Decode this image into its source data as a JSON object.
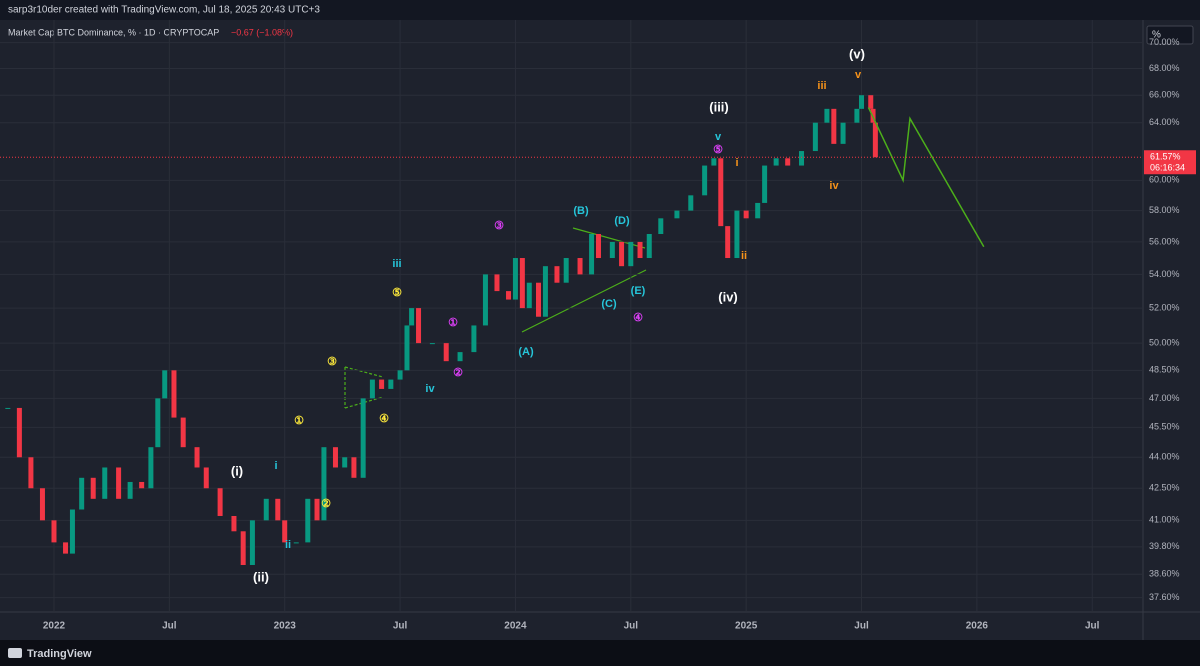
{
  "header": "sarp3r10der created with TradingView.com, Jul 18, 2025 20:43 UTC+3",
  "footer": "TradingView",
  "chart_data": {
    "type": "candle-line",
    "title": "Market Cap BTC Dominance, % · 1D · CRYPTOCAP",
    "change": "−0.67 (−1.08%)",
    "axis_unit": "%",
    "countdown": "06:16:34",
    "last_price": {
      "value": 61.57,
      "label": "61.57%"
    },
    "log_scale": true,
    "xlim": [
      2021.766,
      2026.72
    ],
    "ylim": [
      37.0,
      71.8
    ],
    "xticks": [
      {
        "value": 2022,
        "label": "2022"
      },
      {
        "value": 2022.5,
        "label": "Jul"
      },
      {
        "value": 2023,
        "label": "2023"
      },
      {
        "value": 2023.5,
        "label": "Jul"
      },
      {
        "value": 2024,
        "label": "2024"
      },
      {
        "value": 2024.5,
        "label": "Jul"
      },
      {
        "value": 2025,
        "label": "2025"
      },
      {
        "value": 2025.5,
        "label": "Jul"
      },
      {
        "value": 2026,
        "label": "2026"
      },
      {
        "value": 2026.5,
        "label": "Jul"
      }
    ],
    "yticks": [
      {
        "value": 37.6,
        "label": "37.60%"
      },
      {
        "value": 38.6,
        "label": "38.60%"
      },
      {
        "value": 39.8,
        "label": "39.80%"
      },
      {
        "value": 41,
        "label": "41.00%"
      },
      {
        "value": 42.5,
        "label": "42.50%"
      },
      {
        "value": 44,
        "label": "44.00%"
      },
      {
        "value": 45.5,
        "label": "45.50%"
      },
      {
        "value": 47,
        "label": "47.00%"
      },
      {
        "value": 48.5,
        "label": "48.50%"
      },
      {
        "value": 50,
        "label": "50.00%"
      },
      {
        "value": 52,
        "label": "52.00%"
      },
      {
        "value": 54,
        "label": "54.00%"
      },
      {
        "value": 56,
        "label": "56.00%"
      },
      {
        "value": 58,
        "label": "58.00%"
      },
      {
        "value": 60,
        "label": "60.00%"
      },
      {
        "value": 64,
        "label": "64.00%"
      },
      {
        "value": 66,
        "label": "66.00%"
      },
      {
        "value": 68,
        "label": "68.00%"
      },
      {
        "value": 70,
        "label": "70.00%"
      }
    ],
    "series": [
      {
        "name": "BTC Dominance",
        "up_color": "#089981",
        "down_color": "#f23645",
        "x": [
          2021.8,
          2021.85,
          2021.9,
          2021.95,
          2022.0,
          2022.05,
          2022.08,
          2022.12,
          2022.17,
          2022.22,
          2022.28,
          2022.33,
          2022.38,
          2022.42,
          2022.45,
          2022.48,
          2022.52,
          2022.56,
          2022.62,
          2022.66,
          2022.72,
          2022.78,
          2022.82,
          2022.86,
          2022.92,
          2022.97,
          2023.0,
          2023.05,
          2023.1,
          2023.14,
          2023.17,
          2023.22,
          2023.26,
          2023.3,
          2023.34,
          2023.38,
          2023.42,
          2023.46,
          2023.5,
          2023.53,
          2023.55,
          2023.58,
          2023.64,
          2023.7,
          2023.76,
          2023.82,
          2023.87,
          2023.92,
          2023.97,
          2024.0,
          2024.03,
          2024.06,
          2024.1,
          2024.13,
          2024.18,
          2024.22,
          2024.28,
          2024.33,
          2024.36,
          2024.42,
          2024.46,
          2024.5,
          2024.54,
          2024.58,
          2024.63,
          2024.7,
          2024.76,
          2024.82,
          2024.86,
          2024.89,
          2024.92,
          2024.96,
          2025.0,
          2025.05,
          2025.08,
          2025.13,
          2025.18,
          2025.24,
          2025.3,
          2025.35,
          2025.38,
          2025.42,
          2025.48,
          2025.5,
          2025.54,
          2025.55,
          2025.56
        ],
        "values": [
          46.5,
          44,
          42.5,
          41,
          40,
          39.5,
          41.5,
          43,
          42,
          43.5,
          42,
          42.8,
          42.5,
          44.5,
          47,
          48.5,
          46,
          44.5,
          43.5,
          42.5,
          41.2,
          40.5,
          39,
          41,
          42,
          41,
          40,
          40,
          42,
          41,
          44.5,
          43.5,
          44,
          43,
          47,
          48,
          47.5,
          48,
          48.5,
          51,
          52,
          50,
          50,
          49,
          49.5,
          51,
          54,
          53,
          52.5,
          55,
          52,
          53.5,
          51.5,
          54.5,
          53.5,
          55,
          54,
          56.5,
          55,
          56,
          54.5,
          56,
          55,
          56.5,
          57.5,
          58,
          59,
          61,
          61.5,
          57,
          55,
          58,
          57.5,
          58.5,
          61,
          61.5,
          61,
          62,
          64,
          65,
          62.5,
          64,
          65,
          66,
          65,
          64,
          61.57
        ]
      },
      {
        "name": "Projection",
        "color": "#4caf1a",
        "x": [
          2025.53,
          2025.68,
          2025.71,
          2026.03
        ],
        "values": [
          65.1,
          60.0,
          64.3,
          55.7
        ]
      }
    ],
    "annotations": [
      {
        "text": "(v)",
        "color": "#ffffff"
      },
      {
        "text": "v",
        "color": "#f7931a"
      },
      {
        "text": "iii",
        "color": "#f7931a"
      },
      {
        "text": "(iii)",
        "color": "#ffffff"
      },
      {
        "text": "v",
        "color": "#26c6da"
      },
      {
        "text": "⑤",
        "color": "#e040fb"
      },
      {
        "text": "i",
        "color": "#f7931a"
      },
      {
        "text": "iv",
        "color": "#f7931a"
      },
      {
        "text": "ii",
        "color": "#f7931a"
      },
      {
        "text": "(iv)",
        "color": "#ffffff"
      },
      {
        "text": "(B)",
        "color": "#26c6da"
      },
      {
        "text": "(D)",
        "color": "#26c6da"
      },
      {
        "text": "③",
        "color": "#e040fb"
      },
      {
        "text": "iii",
        "color": "#26c6da"
      },
      {
        "text": "⑤",
        "color": "#ffeb3b"
      },
      {
        "text": "(E)",
        "color": "#26c6da"
      },
      {
        "text": "(C)",
        "color": "#26c6da"
      },
      {
        "text": "④",
        "color": "#e040fb"
      },
      {
        "text": "①",
        "color": "#e040fb"
      },
      {
        "text": "(A)",
        "color": "#26c6da"
      },
      {
        "text": "③",
        "color": "#ffeb3b"
      },
      {
        "text": "②",
        "color": "#e040fb"
      },
      {
        "text": "iv",
        "color": "#26c6da"
      },
      {
        "text": "④",
        "color": "#ffeb3b"
      },
      {
        "text": "①",
        "color": "#ffeb3b"
      },
      {
        "text": "i",
        "color": "#26c6da"
      },
      {
        "text": "(i)",
        "color": "#ffffff"
      },
      {
        "text": "②",
        "color": "#ffeb3b"
      },
      {
        "text": "ii",
        "color": "#26c6da"
      },
      {
        "text": "(ii)",
        "color": "#ffffff"
      }
    ]
  }
}
